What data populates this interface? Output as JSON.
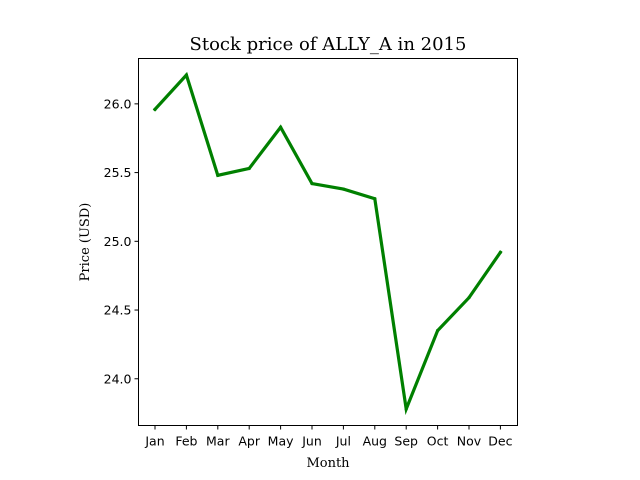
{
  "chart_data": {
    "type": "line",
    "title": "Stock price of ALLY_A in 2015",
    "xlabel": "Month",
    "ylabel": "Price (USD)",
    "categories": [
      "Jan",
      "Feb",
      "Mar",
      "Apr",
      "May",
      "Jun",
      "Jul",
      "Aug",
      "Sep",
      "Oct",
      "Nov",
      "Dec"
    ],
    "series": [
      {
        "values": [
          25.96,
          26.21,
          25.48,
          25.53,
          25.83,
          25.42,
          25.38,
          25.31,
          23.78,
          24.35,
          24.59,
          24.92
        ],
        "color": "#008000"
      }
    ],
    "yticks": [
      "24.0",
      "24.5",
      "25.0",
      "25.5",
      "26.0"
    ],
    "ylim": [
      23.66,
      26.33
    ],
    "grid": false,
    "legend": "none"
  }
}
